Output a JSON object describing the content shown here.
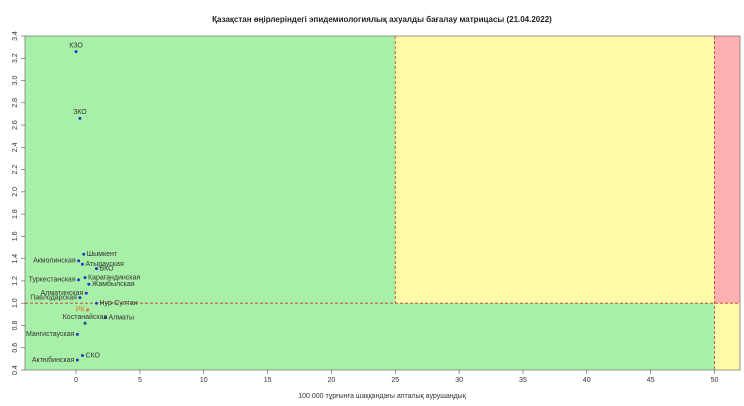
{
  "chart_data": {
    "type": "scatter",
    "title": "Қазақстан өңірлеріндегі эпидемиологиялық ахуалды бағалау матрицасы  (21.04.2022)",
    "x_label": "100 000 тұрғынға шаққандағы апталық аурушаңдық",
    "labels": [
      "КЗО",
      "ЗКО",
      "Шымкент",
      "Акмолинская",
      "Атырауская",
      "ВКО",
      "Карагандинская",
      "Туркестанская",
      "Жамбылская",
      "Алматинская",
      "Павлодарская",
      "Нур-Султан",
      "РК",
      "Алматы",
      "Костанайская",
      "Мангистауская",
      "СКО",
      "Актюбинская"
    ],
    "x": [
      0,
      0.3,
      0.6,
      0.2,
      0.5,
      1.6,
      0.7,
      0.2,
      1.0,
      0.8,
      0.3,
      1.6,
      0.9,
      2.3,
      0.7,
      0.1,
      0.5,
      0.1
    ],
    "values": [
      3.26,
      2.66,
      1.44,
      1.38,
      1.35,
      1.31,
      1.23,
      1.21,
      1.17,
      1.09,
      1.05,
      1.0,
      0.94,
      0.87,
      0.82,
      0.72,
      0.53,
      0.49
    ],
    "colors": [
      "#1a3fbf",
      "#1a3fbf",
      "#1a3fbf",
      "#1a3fbf",
      "#1a3fbf",
      "#1a3fbf",
      "#1a3fbf",
      "#1a3fbf",
      "#1a3fbf",
      "#1a3fbf",
      "#1a3fbf",
      "#1a3fbf",
      "#e0702a",
      "#1a3fbf",
      "#1a3fbf",
      "#1a3fbf",
      "#1a3fbf",
      "#1a3fbf"
    ],
    "xlim": [
      -4,
      52
    ],
    "ylim": [
      0.4,
      3.4
    ],
    "xticks": [
      0,
      5,
      10,
      15,
      20,
      25,
      30,
      35,
      40,
      45,
      50
    ],
    "yticks": [
      0.4,
      0.6,
      0.8,
      1.0,
      1.2,
      1.4,
      1.6,
      1.8,
      2.0,
      2.2,
      2.4,
      2.6,
      2.8,
      3.0,
      3.2,
      3.4
    ],
    "reference_lines": {
      "x": [
        25,
        50
      ],
      "y": [
        1
      ],
      "color": "#c0392b"
    },
    "zone_colors": {
      "green": "#a8f0a8",
      "yellow": "#fffaa8",
      "red": "#ffb0b0"
    }
  }
}
